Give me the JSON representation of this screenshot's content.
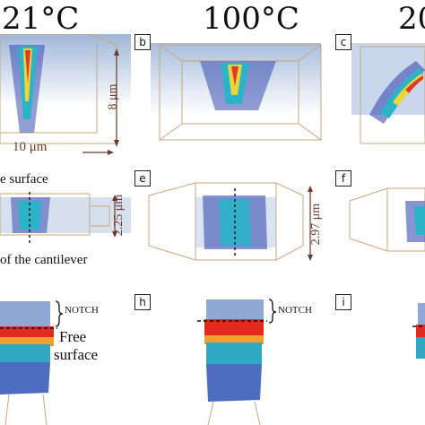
{
  "headers": {
    "col1": "21°C",
    "col2": "100°C",
    "col3": "20"
  },
  "panel_labels": [
    "b",
    "c",
    "e",
    "f",
    "h",
    "i"
  ],
  "scale": {
    "height": "8 μm",
    "width": "10 μm",
    "thickness_e": "2.25 μm",
    "thickness_f": "2.97 μm"
  },
  "annotations": {
    "top_surface": "e surface",
    "cantilever": "of the cantilever",
    "notch_g": "NOTCH",
    "notch_h": "NOTCH",
    "free_surface_1": "Free",
    "free_surface_2": "surface"
  }
}
